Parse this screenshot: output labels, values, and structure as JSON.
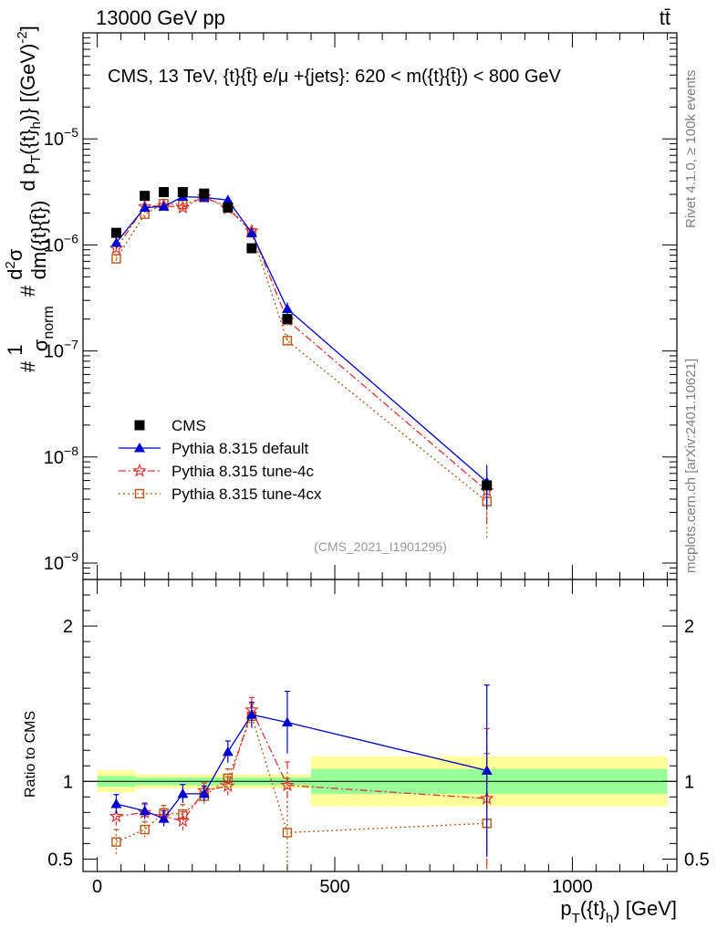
{
  "header": {
    "left": "13000 GeV pp",
    "right": "tt̄"
  },
  "side_labels": {
    "rivet": "Rivet 4.1.0, ≥ 100k events",
    "mcplots": "mcplots.cern.ch [arXiv:2401.10621]"
  },
  "colors": {
    "cms": "#000000",
    "default": "#0000cc",
    "tune4c": "#dd3333",
    "tune4cx": "#bb5511",
    "band_outer": "#ffff99",
    "band_inner": "#99ff99"
  },
  "chart_data": [
    {
      "type": "line",
      "title": "CMS, 13 TeV, {t}{t̄} e/μ +{jets}: 620 < m({t}{t̄}) < 800 GeV",
      "watermark": "(CMS_2021_I1901295)",
      "ylabel": "#1/σnorm #d²σ/dm({t}{t̄}) d pT({t}h) [(GeV)⁻²]",
      "ylabel_parts": {
        "frac1_num": "1",
        "frac1_den_main": "σ",
        "frac1_den_sub": "norm",
        "frac2_num_main": "d",
        "frac2_num_sup": "2",
        "frac2_num_rest": "σ",
        "frac2_den": "dm({t}{t̄})",
        "tail_main": "d p",
        "tail_sub": "T",
        "tail_rest": "({t}",
        "tail_sub2": "h",
        "tail_end": ")} [(GeV)",
        "tail_sup": "-2",
        "tail_close": "]",
        "hash": "#"
      },
      "y_scale": "log",
      "ylim": [
        7e-10,
        0.0001
      ],
      "xlim": [
        -30,
        1220
      ],
      "y_ticks": [
        {
          "value": 1e-09,
          "base": "10",
          "exp": "−9"
        },
        {
          "value": 1e-08,
          "base": "10",
          "exp": "−8"
        },
        {
          "value": 1e-07,
          "base": "10",
          "exp": "−7"
        },
        {
          "value": 1e-06,
          "base": "10",
          "exp": "−6"
        },
        {
          "value": 1e-05,
          "base": "10",
          "exp": "−5"
        }
      ],
      "legend": [
        {
          "key": "cms",
          "label": "CMS"
        },
        {
          "key": "default",
          "label": "Pythia 8.315 default"
        },
        {
          "key": "tune4c",
          "label": "Pythia 8.315 tune-4c"
        },
        {
          "key": "tune4cx",
          "label": "Pythia 8.315 tune-4cx"
        }
      ],
      "x": [
        40,
        100,
        140,
        180,
        225,
        275,
        325,
        400,
        820
      ],
      "x_bins": [
        [
          0,
          80
        ],
        [
          80,
          120
        ],
        [
          120,
          160
        ],
        [
          160,
          200
        ],
        [
          200,
          250
        ],
        [
          250,
          300
        ],
        [
          300,
          350
        ],
        [
          350,
          450
        ],
        [
          450,
          1200
        ]
      ],
      "series": [
        {
          "key": "cms",
          "name": "CMS",
          "marker": "square",
          "values": [
            1.3e-06,
            2.9e-06,
            3.15e-06,
            3.15e-06,
            3.05e-06,
            2.25e-06,
            9.3e-07,
            2e-07,
            5.4e-09
          ]
        },
        {
          "key": "default",
          "name": "Pythia 8.315 default",
          "marker": "triangle",
          "values": [
            1.05e-06,
            2.25e-06,
            2.3e-06,
            2.85e-06,
            2.8e-06,
            2.65e-06,
            1.3e-06,
            2.5e-07,
            5.8e-09
          ],
          "err_rel": [
            0.1,
            0.07,
            0.08,
            0.06,
            0.06,
            0.06,
            0.1,
            0.15,
            0.45
          ]
        },
        {
          "key": "tune4c",
          "name": "Pythia 8.315 tune-4c",
          "marker": "star",
          "values": [
            9.3e-07,
            2.3e-06,
            2.35e-06,
            2.25e-06,
            2.85e-06,
            2.2e-06,
            1.35e-06,
            1.95e-07,
            4.8e-09
          ],
          "err_rel": [
            0.1,
            0.07,
            0.08,
            0.07,
            0.06,
            0.06,
            0.1,
            0.15,
            0.5
          ]
        },
        {
          "key": "tune4cx",
          "name": "Pythia 8.315 tune-4cx",
          "marker": "open-square",
          "values": [
            7.4e-07,
            1.95e-06,
            2.45e-06,
            2.4e-06,
            2.8e-06,
            2.3e-06,
            1.3e-06,
            1.25e-07,
            3.8e-09
          ],
          "err_rel": [
            0.1,
            0.07,
            0.08,
            0.07,
            0.06,
            0.06,
            0.1,
            0.15,
            0.55
          ]
        }
      ]
    },
    {
      "type": "line",
      "ylabel": "Ratio to CMS",
      "xlabel_main": "p",
      "xlabel_sub": "T",
      "xlabel_rest": "({t}",
      "xlabel_sub2": "h",
      "xlabel_end": ") [GeV]",
      "xlim": [
        -30,
        1220
      ],
      "ylim": [
        0.42,
        2.3
      ],
      "x_ticks": [
        {
          "value": 0,
          "label": "0"
        },
        {
          "value": 500,
          "label": "500"
        },
        {
          "value": 1000,
          "label": "1000"
        }
      ],
      "y_ticks": [
        {
          "value": 0.5,
          "label": "0.5"
        },
        {
          "value": 1,
          "label": "1"
        },
        {
          "value": 2,
          "label": "2"
        }
      ],
      "x": [
        40,
        100,
        140,
        180,
        225,
        275,
        325,
        400,
        820
      ],
      "bands": [
        {
          "x0": 0,
          "x1": 80,
          "outer": [
            0.93,
            1.07
          ],
          "inner": [
            0.965,
            1.035
          ]
        },
        {
          "x0": 80,
          "x1": 450,
          "outer": [
            0.955,
            1.045
          ],
          "inner": [
            0.975,
            1.025
          ]
        },
        {
          "x0": 450,
          "x1": 1200,
          "outer": [
            0.84,
            1.16
          ],
          "inner": [
            0.92,
            1.08
          ]
        }
      ],
      "series": [
        {
          "key": "default",
          "name": "Pythia 8.315 default",
          "marker": "triangle",
          "values": [
            0.855,
            0.81,
            0.76,
            0.92,
            0.92,
            1.19,
            1.43,
            1.38,
            1.07
          ],
          "err": [
            0.06,
            0.05,
            0.05,
            0.06,
            0.05,
            0.07,
            0.08,
            0.2,
            0.55
          ]
        },
        {
          "key": "tune4c",
          "name": "Pythia 8.315 tune-4c",
          "marker": "star",
          "values": [
            0.775,
            0.8,
            0.775,
            0.745,
            0.94,
            0.97,
            1.46,
            0.975,
            0.89
          ],
          "err": [
            0.06,
            0.05,
            0.05,
            0.06,
            0.05,
            0.06,
            0.08,
            0.15,
            0.45
          ]
        },
        {
          "key": "tune4cx",
          "name": "Pythia 8.315 tune-4cx",
          "marker": "open-square",
          "values": [
            0.61,
            0.69,
            0.795,
            0.79,
            0.905,
            1.02,
            1.42,
            0.67,
            0.73
          ],
          "err": [
            0.08,
            0.05,
            0.05,
            0.06,
            0.05,
            0.06,
            0.08,
            0.35,
            0.45
          ]
        }
      ]
    }
  ]
}
